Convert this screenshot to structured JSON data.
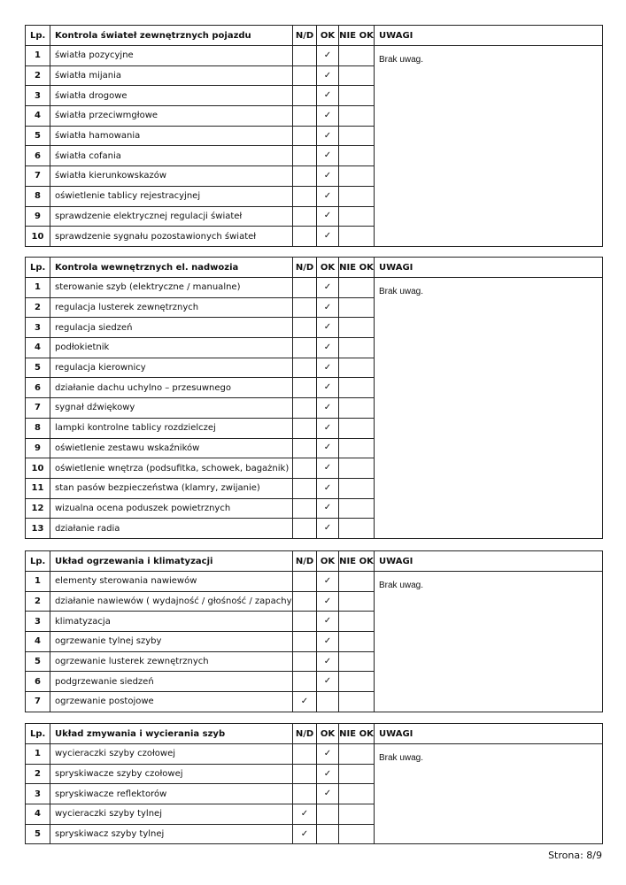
{
  "columns": {
    "lp": "Lp.",
    "nd": "N/D",
    "ok": "OK",
    "nieok": "NIE OK",
    "uwagi": "UWAGI"
  },
  "check_mark": "✓",
  "sections": [
    {
      "title": "Kontrola świateł zewnętrznych pojazdu",
      "remarks": "Brak uwag.",
      "items": [
        {
          "no": "1",
          "label": "światła pozycyjne",
          "status": "ok"
        },
        {
          "no": "2",
          "label": "światła mijania",
          "status": "ok"
        },
        {
          "no": "3",
          "label": "światła drogowe",
          "status": "ok"
        },
        {
          "no": "4",
          "label": "światła przeciwmgłowe",
          "status": "ok"
        },
        {
          "no": "5",
          "label": "światła hamowania",
          "status": "ok"
        },
        {
          "no": "6",
          "label": "światła cofania",
          "status": "ok"
        },
        {
          "no": "7",
          "label": "światła kierunkowskazów",
          "status": "ok"
        },
        {
          "no": "8",
          "label": "oświetlenie tablicy rejestracyjnej",
          "status": "ok"
        },
        {
          "no": "9",
          "label": "sprawdzenie elektrycznej regulacji świateł",
          "status": "ok"
        },
        {
          "no": "10",
          "label": "sprawdzenie sygnału pozostawionych świateł",
          "status": "ok"
        }
      ]
    },
    {
      "title": "Kontrola wewnętrznych el. nadwozia",
      "remarks": "Brak uwag.",
      "items": [
        {
          "no": "1",
          "label": "sterowanie szyb (elektryczne / manualne)",
          "status": "ok"
        },
        {
          "no": "2",
          "label": "regulacja lusterek zewnętrznych",
          "status": "ok"
        },
        {
          "no": "3",
          "label": "regulacja siedzeń",
          "status": "ok"
        },
        {
          "no": "4",
          "label": "podłokietnik",
          "status": "ok"
        },
        {
          "no": "5",
          "label": "regulacja kierownicy",
          "status": "ok"
        },
        {
          "no": "6",
          "label": "działanie dachu uchylno – przesuwnego",
          "status": "ok"
        },
        {
          "no": "7",
          "label": "sygnał dźwiękowy",
          "status": "ok"
        },
        {
          "no": "8",
          "label": "lampki kontrolne tablicy rozdzielczej",
          "status": "ok"
        },
        {
          "no": "9",
          "label": "oświetlenie zestawu wskaźników",
          "status": "ok"
        },
        {
          "no": "10",
          "label": "oświetlenie wnętrza (podsufitka, schowek, bagażnik)",
          "status": "ok"
        },
        {
          "no": "11",
          "label": "stan pasów bezpieczeństwa (klamry, zwijanie)",
          "status": "ok"
        },
        {
          "no": "12",
          "label": "wizualna ocena poduszek powietrznych",
          "status": "ok"
        },
        {
          "no": "13",
          "label": "działanie radia",
          "status": "ok"
        }
      ]
    },
    {
      "title": "Układ ogrzewania i klimatyzacji",
      "remarks": "Brak uwag.",
      "items": [
        {
          "no": "1",
          "label": "elementy sterowania nawiewów",
          "status": "ok"
        },
        {
          "no": "2",
          "label": "działanie nawiewów ( wydajność / głośność / zapachy)",
          "status": "ok"
        },
        {
          "no": "3",
          "label": "klimatyzacja",
          "status": "ok"
        },
        {
          "no": "4",
          "label": "ogrzewanie tylnej szyby",
          "status": "ok"
        },
        {
          "no": "5",
          "label": "ogrzewanie lusterek zewnętrznych",
          "status": "ok"
        },
        {
          "no": "6",
          "label": "podgrzewanie siedzeń",
          "status": "ok"
        },
        {
          "no": "7",
          "label": "ogrzewanie postojowe",
          "status": "nd"
        }
      ]
    },
    {
      "title": "Układ zmywania i wycierania szyb",
      "remarks": "Brak uwag.",
      "items": [
        {
          "no": "1",
          "label": "wycieraczki szyby czołowej",
          "status": "ok"
        },
        {
          "no": "2",
          "label": "spryskiwacze szyby czołowej",
          "status": "ok"
        },
        {
          "no": "3",
          "label": "spryskiwacze reflektorów",
          "status": "ok"
        },
        {
          "no": "4",
          "label": "wycieraczki szyby tylnej",
          "status": "nd"
        },
        {
          "no": "5",
          "label": "spryskiwacz szyby tylnej",
          "status": "nd"
        }
      ]
    }
  ],
  "footer": {
    "page": "Strona: 8/9"
  }
}
